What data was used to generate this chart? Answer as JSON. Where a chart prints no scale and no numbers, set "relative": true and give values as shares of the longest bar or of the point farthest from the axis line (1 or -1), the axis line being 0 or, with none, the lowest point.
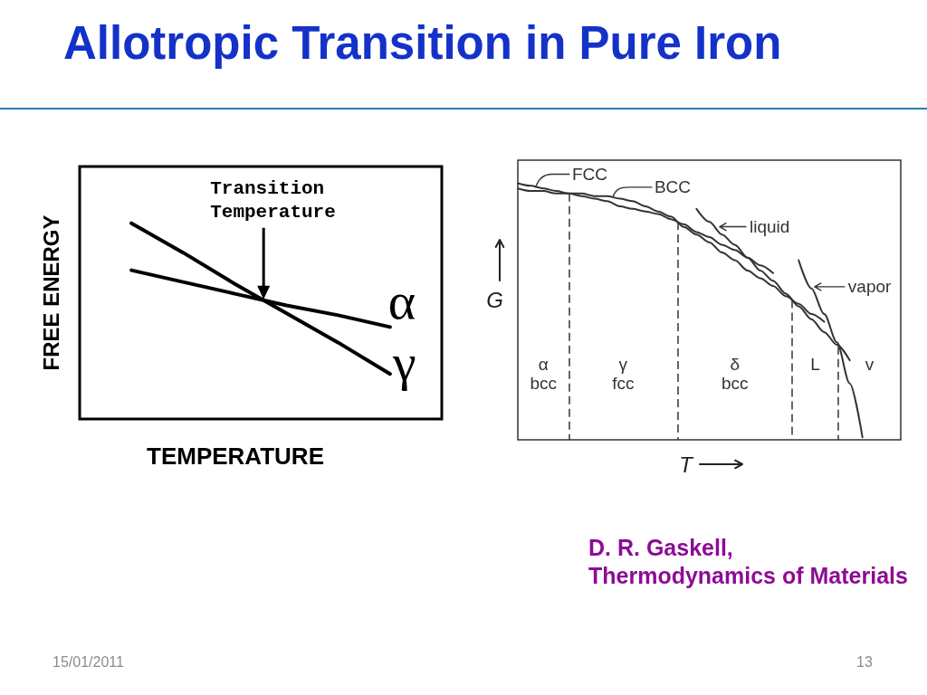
{
  "chart_data": [
    {
      "type": "line",
      "title": "Allotropic Transition in Pure Iron",
      "xlabel": "TEMPERATURE",
      "ylabel": "FREE ENERGY",
      "relative": true,
      "marker": "none",
      "categories": [
        null,
        null,
        null,
        null,
        null,
        null,
        null,
        null
      ],
      "series": [
        {
          "name": "α",
          "color": "#000000",
          "values": [
            null,
            0.76,
            0.7,
            0.64,
            0.58,
            0.53,
            0.47,
            null
          ]
        },
        {
          "name": "γ",
          "color": "#000000",
          "values": [
            null,
            1,
            0.85,
            0.69,
            0.54,
            0.39,
            0.23,
            null
          ]
        }
      ],
      "annotations": [
        "Transition\nTemperature",
        "15/01/2011"
      ]
    },
    {
      "type": "line",
      "xlabel": "T",
      "ylabel": "G",
      "relative": true,
      "marker": "none",
      "legend": "top",
      "categories": [
        null,
        null,
        null,
        null,
        null,
        null,
        null,
        null,
        null,
        null,
        null,
        null,
        null,
        null,
        null,
        null,
        null,
        null,
        null,
        null,
        null,
        null,
        null,
        null,
        null,
        null,
        null,
        null,
        null,
        null,
        null
      ],
      "series": [
        {
          "name": "FCC",
          "color": "#333333",
          "values": [
            1,
            0.99,
            0.98,
            0.97,
            0.96,
            0.95,
            0.94,
            0.93,
            0.91,
            0.9,
            0.89,
            0.88,
            0.86,
            0.84,
            0.81,
            0.79,
            0.76,
            0.74,
            0.71,
            0.68,
            0.65,
            null,
            null,
            null,
            null,
            null,
            null,
            null,
            null,
            null,
            null
          ]
        },
        {
          "name": "BCC",
          "color": "#333333",
          "values": [
            0.98,
            0.97,
            0.97,
            0.96,
            0.96,
            0.96,
            0.95,
            0.95,
            0.94,
            0.93,
            0.91,
            0.89,
            0.87,
            0.83,
            0.8,
            0.77,
            0.73,
            0.7,
            0.66,
            0.63,
            0.6,
            0.56,
            0.53,
            0.49,
            0.46,
            null,
            null,
            null,
            null,
            null,
            null
          ]
        },
        {
          "name": "liquid",
          "color": "#333333",
          "values": [
            null,
            null,
            null,
            null,
            null,
            null,
            null,
            null,
            null,
            null,
            null,
            null,
            null,
            null,
            0.9,
            0.85,
            0.8,
            0.76,
            0.71,
            0.66,
            0.62,
            0.57,
            0.52,
            0.47,
            0.42,
            0.37,
            0.31,
            null,
            null,
            null,
            null
          ]
        },
        {
          "name": "vapor",
          "color": "#333333",
          "values": [
            null,
            null,
            null,
            null,
            null,
            null,
            null,
            null,
            null,
            null,
            null,
            null,
            null,
            null,
            null,
            null,
            null,
            null,
            null,
            null,
            null,
            null,
            0.7,
            0.59,
            0.49,
            0.38,
            0.22,
            0.01,
            null,
            null,
            null
          ]
        }
      ],
      "annotations": [
        "α\nbcc",
        "γ\nfcc",
        "δ\nbcc",
        "L",
        "v",
        "D. R. Gaskell,\nThermodynamics of Materials",
        "13"
      ]
    }
  ]
}
